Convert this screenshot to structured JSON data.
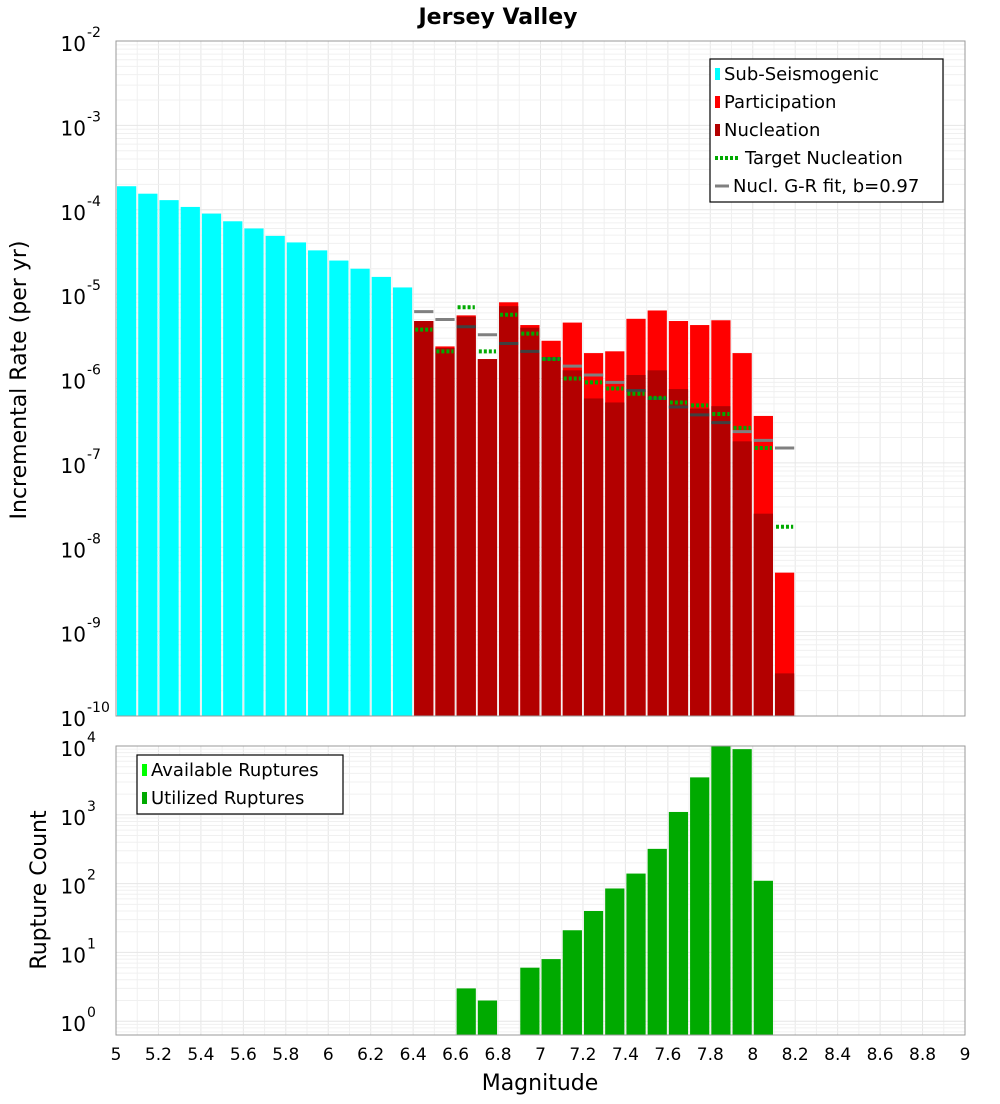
{
  "chart_data": [
    {
      "type": "bar",
      "title": "Jersey Valley",
      "ylabel": "Incremental Rate (per yr)",
      "xlabel": "",
      "xlim": [
        5,
        9
      ],
      "ylim_exponents": [
        -10,
        -2
      ],
      "y_scale": "log",
      "y_tick_base": "10",
      "y_tick_exponents": [
        "-10",
        "-9",
        "-8",
        "-7",
        "-6",
        "-5",
        "-4",
        "-3",
        "-2"
      ],
      "bin_width": 0.1,
      "legend_position": "top-right",
      "legend": [
        {
          "label": "Sub-Seismogenic",
          "color": "#00ffff",
          "kind": "box"
        },
        {
          "label": "Participation",
          "color": "#ff0000",
          "kind": "box"
        },
        {
          "label": "Nucleation",
          "color": "#b30000",
          "kind": "box"
        },
        {
          "label": "Target Nucleation",
          "color": "#00aa00",
          "kind": "dotted"
        },
        {
          "label": "Nucl. G-R fit, b=0.97",
          "color": "#808080",
          "kind": "line"
        }
      ],
      "sub_seismogenic": {
        "x": [
          5.05,
          5.15,
          5.25,
          5.35,
          5.45,
          5.55,
          5.65,
          5.75,
          5.85,
          5.95,
          6.05,
          6.15,
          6.25,
          6.35
        ],
        "values": [
          0.00019,
          0.000155,
          0.00013,
          0.000108,
          9e-05,
          7.3e-05,
          6e-05,
          4.9e-05,
          4.1e-05,
          3.3e-05,
          2.5e-05,
          2e-05,
          1.6e-05,
          1.2e-05
        ]
      },
      "participation": {
        "x": [
          6.45,
          6.55,
          6.65,
          6.75,
          6.85,
          6.95,
          7.05,
          7.15,
          7.25,
          7.35,
          7.45,
          7.55,
          7.65,
          7.75,
          7.85,
          7.95,
          8.05,
          8.15
        ],
        "values": [
          4.8e-06,
          2.4e-06,
          5.6e-06,
          1.7e-06,
          8e-06,
          4.3e-06,
          2.8e-06,
          4.6e-06,
          2e-06,
          2.1e-06,
          5.1e-06,
          6.4e-06,
          4.8e-06,
          4.3e-06,
          4.9e-06,
          2e-06,
          3.6e-07,
          5e-09
        ]
      },
      "nucleation": {
        "x": [
          6.45,
          6.55,
          6.65,
          6.75,
          6.85,
          6.95,
          7.05,
          7.15,
          7.25,
          7.35,
          7.45,
          7.55,
          7.65,
          7.75,
          7.85,
          7.95,
          8.05,
          8.15
        ],
        "values": [
          4.8e-06,
          2.3e-06,
          5.4e-06,
          1.7e-06,
          7.2e-06,
          4e-06,
          1.8e-06,
          1.25e-06,
          5.8e-07,
          5.2e-07,
          1.1e-06,
          1.25e-06,
          7.5e-07,
          4.4e-07,
          4.7e-07,
          1.8e-07,
          2.5e-08,
          3.2e-10
        ]
      },
      "target_nucleation": {
        "x": [
          6.45,
          6.55,
          6.65,
          6.75,
          6.85,
          6.95,
          7.05,
          7.15,
          7.25,
          7.35,
          7.45,
          7.55,
          7.65,
          7.75,
          7.85,
          7.95,
          8.05,
          8.15
        ],
        "values": [
          3.8e-06,
          2.1e-06,
          7e-06,
          2.1e-06,
          5.7e-06,
          3.4e-06,
          1.7e-06,
          1e-06,
          9e-07,
          7.6e-07,
          6.6e-07,
          5.9e-07,
          5.2e-07,
          4.8e-07,
          3.8e-07,
          2.6e-07,
          1.5e-07,
          1.75e-08
        ]
      },
      "gr_fit": {
        "x": [
          6.45,
          6.55,
          6.65,
          6.75,
          6.85,
          6.95,
          7.05,
          7.15,
          7.25,
          7.35,
          7.45,
          7.55,
          7.65,
          7.75,
          7.85,
          7.95,
          8.05,
          8.15
        ],
        "values": [
          6.2e-06,
          5e-06,
          4.1e-06,
          3.3e-06,
          2.6e-06,
          2.1e-06,
          1.7e-06,
          1.4e-06,
          1.1e-06,
          9e-07,
          7.2e-07,
          5.8e-07,
          4.6e-07,
          3.7e-07,
          3e-07,
          2.35e-07,
          1.85e-07,
          1.5e-07
        ]
      }
    },
    {
      "type": "bar",
      "title": "",
      "ylabel": "Rupture Count",
      "xlabel": "Magnitude",
      "xlim": [
        5,
        9
      ],
      "x_ticks": [
        "5",
        "5.2",
        "5.4",
        "5.6",
        "5.8",
        "6",
        "6.2",
        "6.4",
        "6.6",
        "6.8",
        "7",
        "7.2",
        "7.4",
        "7.6",
        "7.8",
        "8",
        "8.2",
        "8.4",
        "8.6",
        "8.8",
        "9"
      ],
      "ylim_exponents": [
        -0.2,
        4
      ],
      "y_scale": "log",
      "y_tick_base": "10",
      "y_tick_exponents": [
        "0",
        "1",
        "2",
        "3",
        "4"
      ],
      "bin_width": 0.1,
      "legend_position": "top-left",
      "legend": [
        {
          "label": "Available Ruptures",
          "color": "#00ff00",
          "kind": "box"
        },
        {
          "label": "Utilized Ruptures",
          "color": "#00aa00",
          "kind": "box"
        }
      ],
      "utilized": {
        "x": [
          6.65,
          6.75,
          6.95,
          7.05,
          7.15,
          7.25,
          7.35,
          7.45,
          7.55,
          7.65,
          7.75,
          7.85,
          7.95,
          8.05
        ],
        "values": [
          3,
          2,
          6,
          8,
          21,
          40,
          85,
          140,
          320,
          1100,
          3500,
          10000,
          9000,
          110
        ]
      }
    }
  ]
}
